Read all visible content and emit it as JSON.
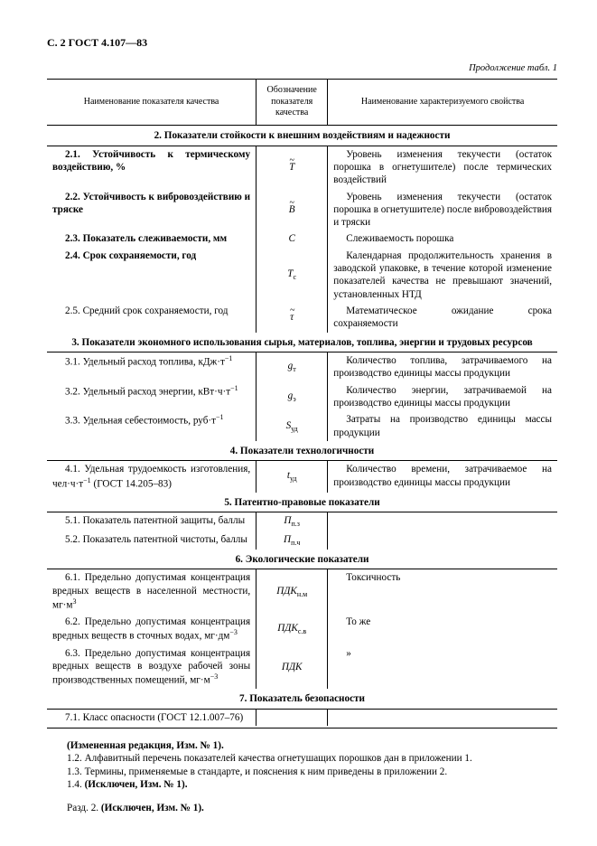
{
  "page_header": "С. 2 ГОСТ 4.107—83",
  "table_continuation": "Продолжение табл. 1",
  "columns": {
    "c1": "Наименование показателя качества",
    "c2": "Обозначение показателя качества",
    "c3": "Наименование характеризуемого свойства"
  },
  "col_widths": [
    "41%",
    "14%",
    "45%"
  ],
  "sections": [
    {
      "title": "2.  Показатели стойкости к внешним воздействиям и надежности",
      "rows": [
        {
          "name": "2.1. Устойчивость к термическому воздействию, %",
          "bold": true,
          "symbol_html": "<span class='symbol tilde'>T</span>",
          "desc": "Уровень изменения текучести (остаток порошка в огнетушителе) после термических воздействий"
        },
        {
          "name": "2.2. Устойчивость к вибровоздействию и тряске",
          "bold": true,
          "symbol_html": "<span class='symbol tilde'>B</span>",
          "desc": "Уровень изменения текучести (остаток порошка в огнетушителе) после вибровоздействия и тряски"
        },
        {
          "name": "2.3. Показатель слеживаемости, мм",
          "bold": true,
          "symbol_html": "<span class='symbol'>C</span>",
          "desc": "Слеживаемость порошка"
        },
        {
          "name": "2.4. Срок сохраняемости, год",
          "bold": true,
          "symbol_html": "<span class='symbol'>T</span><span class='sub'>с</span>",
          "desc": "Календарная продолжительность хранения в заводской упаковке, в течение которой изменение показателей качества не превышают значений, установленных НТД"
        },
        {
          "name": "2.5. Средний срок сохраняемости, год",
          "bold": false,
          "symbol_html": "<span class='symbol tilde'>&tau;</span>",
          "desc": "Математическое ожидание срока сохраняемости"
        }
      ]
    },
    {
      "title": "3.  Показатели экономного использования сырья, материалов, топлива, энергии и трудовых ресурсов",
      "rows": [
        {
          "name": "3.1. Удельный расход топлива, кДж·т<span class='sup'>−1</span>",
          "bold": false,
          "symbol_html": "<span class='symbol'>g</span><span class='sub'>т</span>",
          "desc": "Количество топлива, затрачиваемого на производство единицы массы продукции"
        },
        {
          "name": "3.2. Удельный расход энергии, кВт·ч·т<span class='sup'>−1</span>",
          "bold": false,
          "symbol_html": "<span class='symbol'>g</span><span class='sub'>э</span>",
          "desc": "Количество энергии, затрачиваемой на производство единицы массы продукции"
        },
        {
          "name": "3.3. Удельная себестоимость, руб·т<span class='sup'>−1</span>",
          "bold": false,
          "symbol_html": "<span class='symbol'>S</span><span class='sub'>уд</span>",
          "desc": "Затраты на производство единицы массы продукции"
        }
      ]
    },
    {
      "title": "4.  Показатели технологичности",
      "rows": [
        {
          "name": "4.1. Удельная трудоемкость изготовления, чел·ч·т<span class='sup'>−1</span> (ГОСТ 14.205–83)",
          "bold": false,
          "symbol_html": "<span class='symbol'>t</span><span class='sub'>уд</span>",
          "desc": "Количество времени, затрачиваемое на производство единицы массы продукции"
        }
      ]
    },
    {
      "title": "5.  Патентно-правовые показатели",
      "rows": [
        {
          "name": "5.1. Показатель патентной защиты, баллы",
          "bold": false,
          "symbol_html": "<span class='symbol'>П</span><span class='sub'>п.з</span>",
          "desc": ""
        },
        {
          "name": "5.2. Показатель патентной чистоты, баллы",
          "bold": false,
          "symbol_html": "<span class='symbol'>П</span><span class='sub'>п.ч</span>",
          "desc": ""
        }
      ]
    },
    {
      "title": "6.  Экологические показатели",
      "rows": [
        {
          "name": "6.1. Предельно допустимая концентрация вредных веществ в населенной местности, мг·м<span class='sup'>3</span>",
          "bold": false,
          "symbol_html": "<span class='symbol'>ПДК</span><span class='sub'>н.м</span>",
          "desc": "Токсичность"
        },
        {
          "name": "6.2. Предельно допустимая концентрация вредных веществ в сточных водах, мг·дм<span class='sup'>−3</span>",
          "bold": false,
          "symbol_html": "<span class='symbol'>ПДК</span><span class='sub'>с.в</span>",
          "desc": "То же"
        },
        {
          "name": "6.3. Предельно допустимая концентрация вредных веществ в воздухе рабочей зоны производственных помещений, мг·м<span class='sup'>−3</span>",
          "bold": false,
          "symbol_html": "<span class='symbol'>ПДК</span>",
          "desc": "»"
        }
      ]
    },
    {
      "title": "7.  Показатель безопасности",
      "rows": [
        {
          "name": "7.1. Класс опасности (ГОСТ 12.1.007–76)",
          "bold": false,
          "symbol_html": "",
          "desc": ""
        }
      ]
    }
  ],
  "notes": [
    "<b>(Измененная редакция, Изм. № 1).</b>",
    "1.2. Алфавитный перечень показателей качества огнетушащих порошков дан в приложении 1.",
    "1.3. Термины, применяемые в стандарте, и пояснения к ним приведены в приложении 2.",
    "1.4. <b>(Исключен, Изм. № 1).</b>"
  ],
  "section_note": "Разд. 2. <b>(Исключен, Изм. № 1).</b>"
}
